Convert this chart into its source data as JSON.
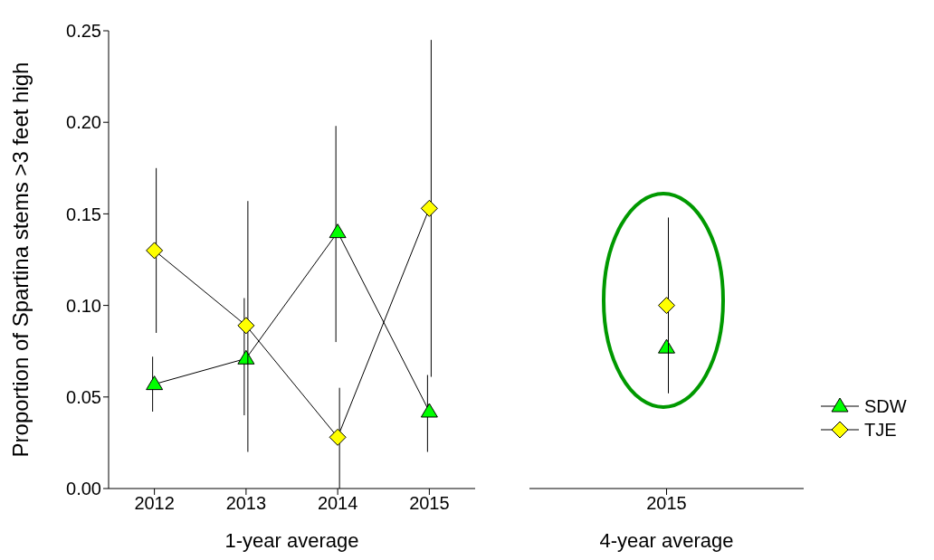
{
  "chart_data": [
    {
      "type": "line",
      "categories": [
        "2012",
        "2013",
        "2014",
        "2015"
      ],
      "xlabel": "1-year average",
      "ylabel": "Proportion of Spartina stems >3 feet high",
      "ylim": [
        0,
        0.25
      ],
      "yticks": [
        {
          "value": 0,
          "label": "0.00"
        },
        {
          "value": 0.05,
          "label": "0.05"
        },
        {
          "value": 0.1,
          "label": "0.10"
        },
        {
          "value": 0.15,
          "label": "0.15"
        },
        {
          "value": 0.2,
          "label": "0.20"
        },
        {
          "value": 0.25,
          "label": "0.25"
        }
      ],
      "grid": false,
      "legend": "right",
      "series": [
        {
          "name": "SDW",
          "color": "#00ff00",
          "marker": "triangle",
          "values": [
            0.057,
            0.071,
            0.14,
            0.042
          ],
          "errors": [
            [
              0.042,
              0.072
            ],
            [
              0.04,
              0.104
            ],
            [
              0.08,
              0.198
            ],
            [
              0.02,
              0.062
            ]
          ]
        },
        {
          "name": "TJE",
          "color": "#ffff00",
          "marker": "diamond",
          "values": [
            0.13,
            0.089,
            0.028,
            0.153
          ],
          "errors": [
            [
              0.085,
              0.175
            ],
            [
              0.02,
              0.157
            ],
            [
              0,
              0.055
            ],
            [
              0.061,
              0.245
            ]
          ]
        }
      ]
    },
    {
      "type": "scatter",
      "categories": [
        "2015"
      ],
      "xlabel": "4-year average",
      "ylim": [
        0,
        0.25
      ],
      "tick_labels": "x",
      "grid": false,
      "legend": false,
      "series": [
        {
          "color": "#00ff00",
          "marker": "triangle",
          "values": [
            0.077
          ],
          "errors": [
            null
          ]
        },
        {
          "color": "#ffff00",
          "marker": "diamond",
          "values": [
            0.1
          ],
          "errors": [
            [
              0.052,
              0.148
            ]
          ]
        }
      ]
    }
  ]
}
